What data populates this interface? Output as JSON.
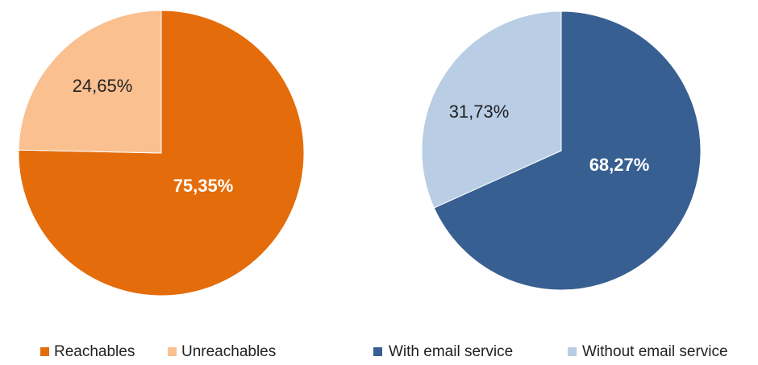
{
  "chart_data": [
    {
      "type": "pie",
      "title": "",
      "slices": [
        {
          "label": "Reachables",
          "value": 75.35,
          "value_label": "75,35%",
          "color": "#E46C0A",
          "label_color": "#FFFFFF",
          "label_bold": true
        },
        {
          "label": "Unreachables",
          "value": 24.65,
          "value_label": "24,65%",
          "color": "#FAC090",
          "label_color": "#222222",
          "label_bold": false
        }
      ],
      "start_angle_deg": 0,
      "direction": "clockwise",
      "legend_position": "bottom"
    },
    {
      "type": "pie",
      "title": "",
      "slices": [
        {
          "label": "With email service",
          "value": 68.27,
          "value_label": "68,27%",
          "color": "#375F91",
          "label_color": "#FFFFFF",
          "label_bold": true
        },
        {
          "label": "Without email service",
          "value": 31.73,
          "value_label": "31,73%",
          "color": "#B9CDE5",
          "label_color": "#222222",
          "label_bold": false
        }
      ],
      "start_angle_deg": 0,
      "direction": "clockwise",
      "legend_position": "bottom"
    }
  ]
}
